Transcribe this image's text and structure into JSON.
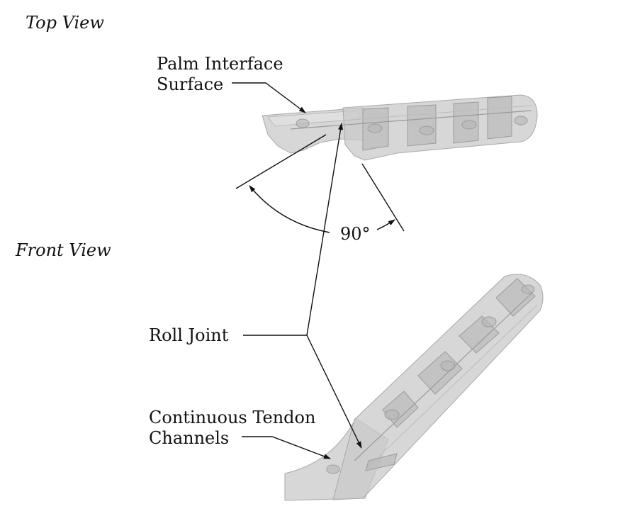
{
  "views": {
    "top": "Top View",
    "front": "Front View"
  },
  "labels": {
    "palm_line1": "Palm Interface",
    "palm_line2": "Surface",
    "angle": "90°",
    "roll_joint": "Roll Joint",
    "tendon_line1": "Continuous Tendon",
    "tendon_line2": "Channels"
  }
}
